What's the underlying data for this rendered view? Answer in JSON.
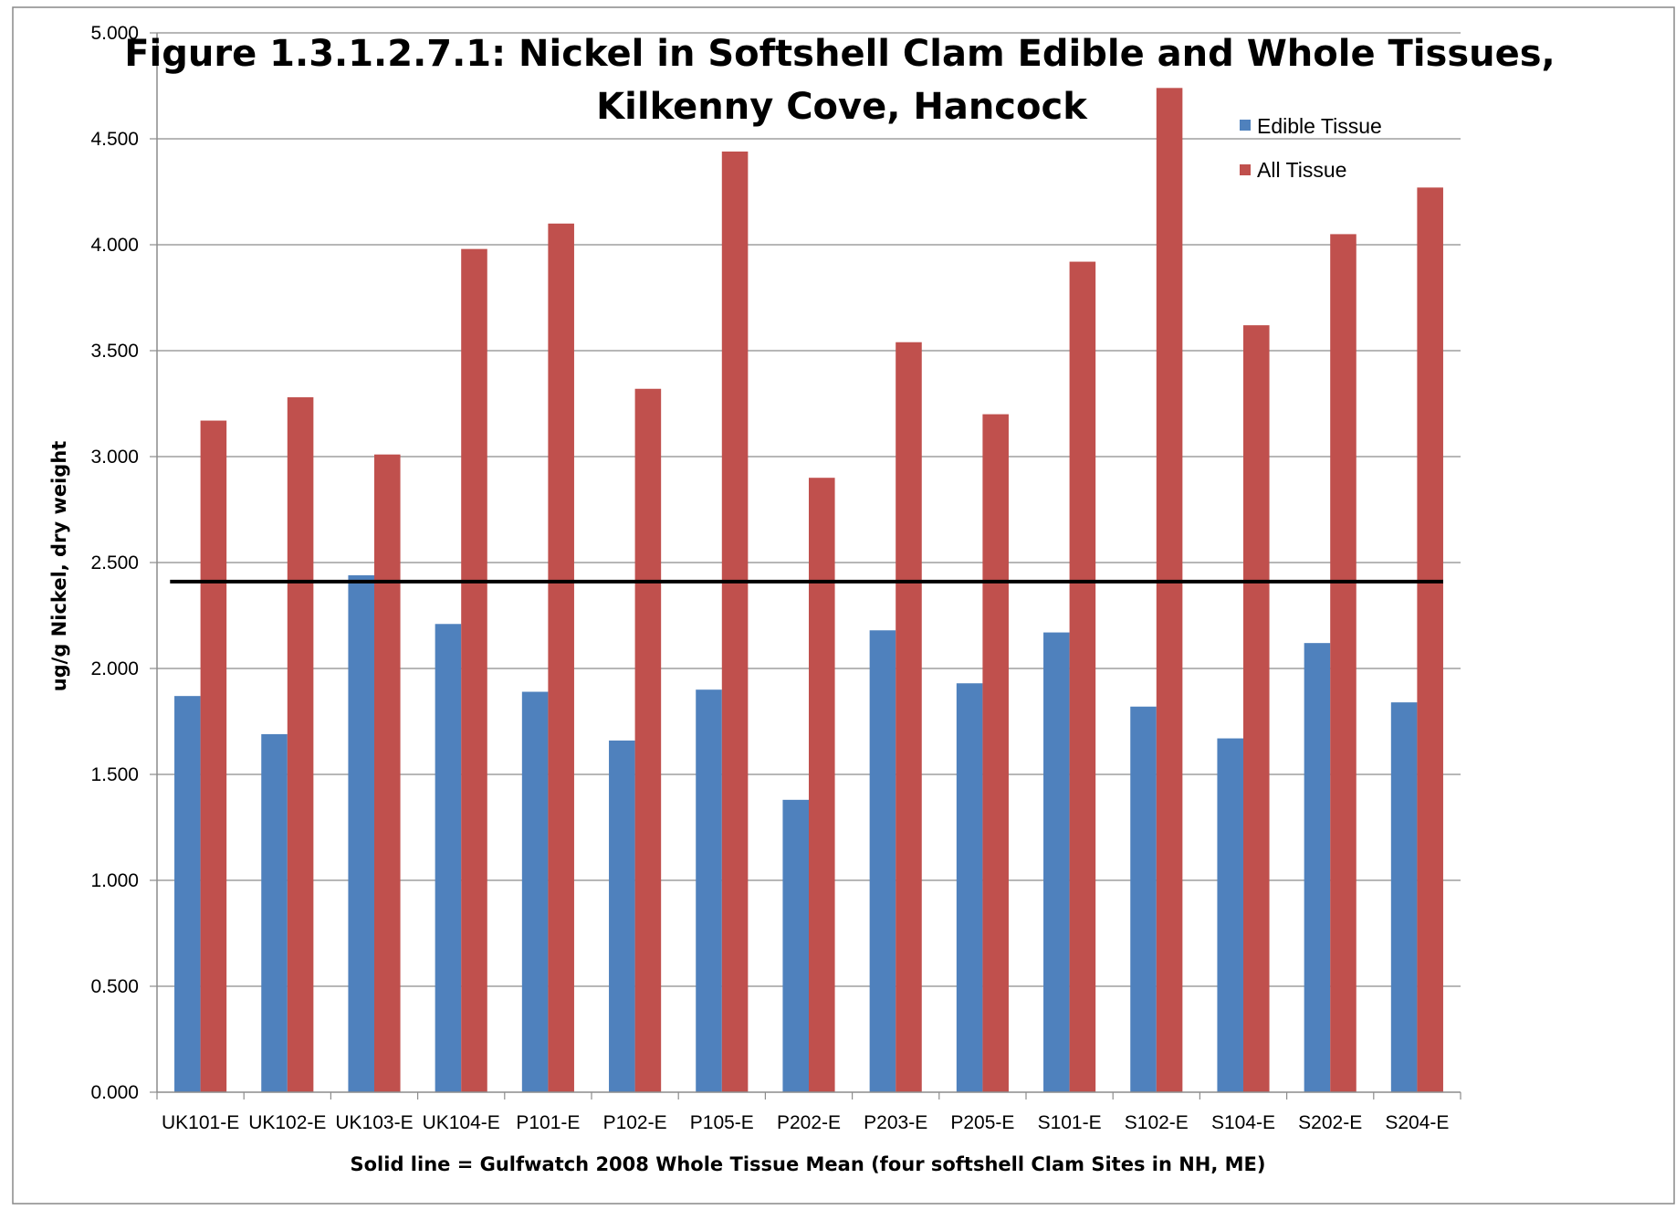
{
  "chart_data": {
    "type": "bar",
    "title_line1": "Figure 1.3.1.2.7.1:  Nickel in Softshell Clam Edible and Whole Tissues,",
    "title_line2": "Kilkenny Cove, Hancock",
    "xlabel": "Solid line = Gulfwatch 2008 Whole Tissue Mean (four softshell Clam Sites in NH, ME)",
    "ylabel": "ug/g Nickel, dry weight",
    "ylim": [
      0,
      5
    ],
    "yticks": [
      "0.000",
      "0.500",
      "1.000",
      "1.500",
      "2.000",
      "2.500",
      "3.000",
      "3.500",
      "4.000",
      "4.500",
      "5.000"
    ],
    "categories": [
      "UK101-E",
      "UK102-E",
      "UK103-E",
      "UK104-E",
      "P101-E",
      "P102-E",
      "P105-E",
      "P202-E",
      "P203-E",
      "P205-E",
      "S101-E",
      "S102-E",
      "S104-E",
      "S202-E",
      "S204-E"
    ],
    "series": [
      {
        "name": "Edible Tissue",
        "color": "#4F81BD",
        "values": [
          1.87,
          1.69,
          2.44,
          2.21,
          1.89,
          1.66,
          1.9,
          1.38,
          2.18,
          1.93,
          2.17,
          1.82,
          1.67,
          2.12,
          1.84
        ]
      },
      {
        "name": "All Tissue",
        "color": "#C0504D",
        "values": [
          3.17,
          3.28,
          3.01,
          3.98,
          4.1,
          3.32,
          4.44,
          2.9,
          3.54,
          3.2,
          3.92,
          4.74,
          3.62,
          4.05,
          4.27
        ]
      }
    ],
    "reference_line": {
      "value": 2.41,
      "color": "#000000"
    },
    "grid": true,
    "legend_position": "top-right"
  }
}
